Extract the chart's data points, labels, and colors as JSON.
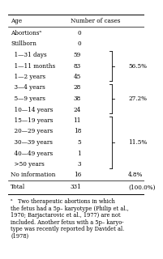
{
  "col1_header": "Age",
  "col2_header": "Number of cases",
  "rows": [
    [
      "Abortionsᵃ",
      "0",
      ""
    ],
    [
      "Stillborn",
      "0",
      ""
    ],
    [
      "  1—31 days",
      "59",
      ""
    ],
    [
      "  1—11 months",
      "83",
      ""
    ],
    [
      "  1—2 years",
      "45",
      ""
    ],
    [
      "  3—4 years",
      "28",
      ""
    ],
    [
      "  5—9 years",
      "38",
      ""
    ],
    [
      "  10—14 years",
      "24",
      ""
    ],
    [
      "  15—19 years",
      "11",
      ""
    ],
    [
      "  20—29 years",
      "18",
      ""
    ],
    [
      "  30—39 years",
      "5",
      ""
    ],
    [
      "  40—49 years",
      "1",
      ""
    ],
    [
      "  >50 years",
      "3",
      ""
    ],
    [
      "No information",
      "16",
      "4.8%"
    ],
    [
      "Total",
      "331",
      "(100.0%)"
    ]
  ],
  "bracket_specs": [
    [
      2,
      4,
      "56.5%"
    ],
    [
      5,
      7,
      "27.2%"
    ],
    [
      8,
      12,
      "11.5%"
    ]
  ],
  "footnote_lines": [
    "ᵃ   Two therapeutic abortions in which",
    "the fetus had a 5p– karyotype (Philip et al.,",
    "1970; Barjactarovic et al., 1977) are not",
    "included. Another fetus with a 5p– karyo-",
    "type was recently reported by Davidet al.",
    "(1978)"
  ],
  "bg_color": "#ffffff",
  "text_color": "#000000",
  "font_size": 5.2,
  "footnote_font_size": 4.8
}
